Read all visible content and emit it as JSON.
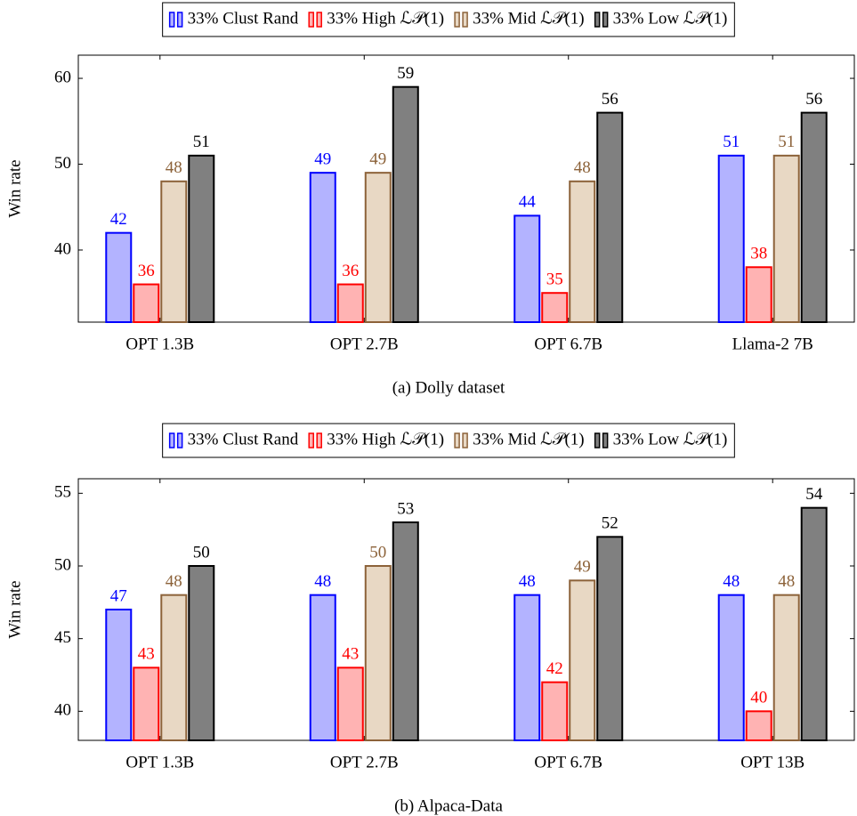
{
  "chart_data": [
    {
      "type": "bar",
      "caption": "(a) Dolly dataset",
      "ylabel": "Win rate",
      "categories": [
        "OPT 1.3B",
        "OPT 2.7B",
        "OPT 6.7B",
        "Llama-2 7B"
      ],
      "series": [
        {
          "name": "33% Clust Rand",
          "color": "#0000ff",
          "fill": "#b3b3ff",
          "values": [
            42,
            49,
            44,
            51
          ]
        },
        {
          "name": "33% High ℒ𝒫(1)",
          "color": "#ff0000",
          "fill": "#ffb3b3",
          "values": [
            36,
            36,
            35,
            38
          ]
        },
        {
          "name": "33% Mid ℒ𝒫(1)",
          "color": "#8c6239",
          "fill": "#e8d8c4",
          "values": [
            48,
            49,
            48,
            51
          ]
        },
        {
          "name": "33% Low ℒ𝒫(1)",
          "color": "#000000",
          "fill": "#808080",
          "values": [
            51,
            59,
            56,
            56
          ]
        }
      ],
      "ylim": [
        31.6,
        62.7
      ],
      "yticks": [
        40,
        50,
        60
      ]
    },
    {
      "type": "bar",
      "caption": "(b) Alpaca-Data",
      "ylabel": "Win rate",
      "categories": [
        "OPT 1.3B",
        "OPT 2.7B",
        "OPT 6.7B",
        "OPT 13B"
      ],
      "series": [
        {
          "name": "33% Clust Rand",
          "color": "#0000ff",
          "fill": "#b3b3ff",
          "values": [
            47,
            48,
            48,
            48
          ]
        },
        {
          "name": "33% High ℒ𝒫(1)",
          "color": "#ff0000",
          "fill": "#ffb3b3",
          "values": [
            43,
            43,
            42,
            40
          ]
        },
        {
          "name": "33% Mid ℒ𝒫(1)",
          "color": "#8c6239",
          "fill": "#e8d8c4",
          "values": [
            48,
            50,
            49,
            48
          ]
        },
        {
          "name": "33% Low ℒ𝒫(1)",
          "color": "#000000",
          "fill": "#808080",
          "values": [
            50,
            53,
            52,
            54
          ]
        }
      ],
      "ylim": [
        38,
        56
      ],
      "yticks": [
        40,
        45,
        50,
        55
      ]
    }
  ]
}
